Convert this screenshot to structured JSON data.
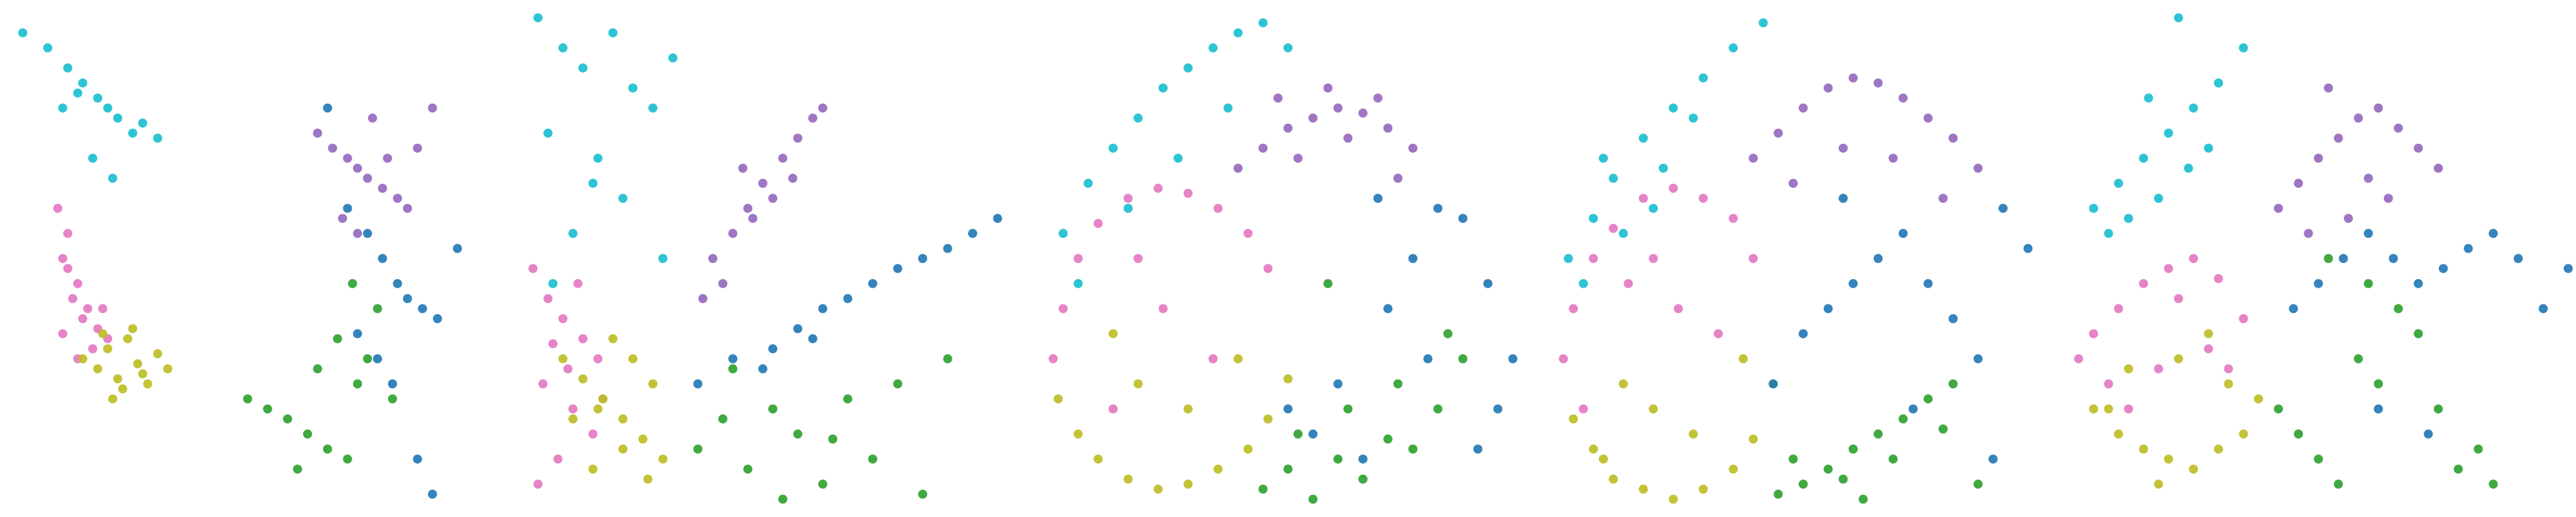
{
  "chart_data": [
    {
      "type": "scatter",
      "xlim": [
        0,
        100
      ],
      "ylim": [
        0,
        100
      ],
      "series": [
        {
          "color": "#17becf",
          "x": [
            3,
            8,
            12,
            15,
            18,
            20,
            22,
            25,
            14,
            17,
            27,
            30,
            21,
            11
          ],
          "y": [
            95,
            92,
            88,
            85,
            82,
            80,
            78,
            75,
            83,
            70,
            77,
            74,
            66,
            80
          ]
        },
        {
          "color": "#e377c2",
          "x": [
            10,
            12,
            11,
            14,
            13,
            16,
            15,
            18,
            12,
            20,
            17,
            11,
            14,
            19
          ],
          "y": [
            60,
            55,
            50,
            45,
            42,
            40,
            38,
            36,
            48,
            34,
            32,
            35,
            30,
            40
          ]
        },
        {
          "color": "#bcbd22",
          "x": [
            15,
            18,
            20,
            22,
            24,
            26,
            28,
            30,
            19,
            23,
            27,
            21,
            25,
            32
          ],
          "y": [
            30,
            28,
            32,
            26,
            34,
            29,
            25,
            31,
            35,
            24,
            27,
            22,
            36,
            28
          ]
        },
        {
          "color": "#9467bd",
          "x": [
            62,
            65,
            68,
            70,
            72,
            75,
            78,
            80,
            73,
            67,
            76,
            82,
            70,
            85
          ],
          "y": [
            75,
            72,
            70,
            68,
            66,
            64,
            62,
            60,
            78,
            58,
            70,
            72,
            55,
            80
          ]
        },
        {
          "color": "#1f77b4",
          "x": [
            64,
            68,
            72,
            75,
            78,
            80,
            83,
            86,
            90,
            74,
            70,
            77,
            82,
            85
          ],
          "y": [
            80,
            60,
            55,
            50,
            45,
            42,
            40,
            38,
            52,
            30,
            35,
            25,
            10,
            3
          ]
        },
        {
          "color": "#2ca02c",
          "x": [
            48,
            52,
            56,
            60,
            64,
            68,
            70,
            72,
            66,
            62,
            58,
            74,
            69,
            77
          ],
          "y": [
            22,
            20,
            18,
            15,
            12,
            10,
            25,
            30,
            34,
            28,
            8,
            40,
            45,
            22
          ]
        }
      ]
    },
    {
      "type": "scatter",
      "xlim": [
        0,
        100
      ],
      "ylim": [
        0,
        100
      ],
      "series": [
        {
          "color": "#17becf",
          "x": [
            3,
            8,
            12,
            18,
            22,
            26,
            30,
            5,
            15,
            20,
            10,
            28,
            6,
            14
          ],
          "y": [
            98,
            92,
            88,
            95,
            84,
            80,
            90,
            75,
            70,
            62,
            55,
            50,
            45,
            65
          ]
        },
        {
          "color": "#e377c2",
          "x": [
            2,
            5,
            8,
            12,
            15,
            4,
            10,
            14,
            7,
            3,
            16,
            9,
            11,
            6
          ],
          "y": [
            48,
            42,
            38,
            34,
            30,
            25,
            20,
            15,
            10,
            5,
            22,
            28,
            45,
            33
          ]
        },
        {
          "color": "#bcbd22",
          "x": [
            8,
            12,
            16,
            20,
            24,
            28,
            14,
            18,
            22,
            26,
            10,
            20,
            25,
            15
          ],
          "y": [
            30,
            26,
            22,
            18,
            14,
            10,
            8,
            34,
            30,
            25,
            18,
            12,
            6,
            20
          ]
        },
        {
          "color": "#9467bd",
          "x": [
            38,
            42,
            45,
            48,
            52,
            55,
            58,
            40,
            46,
            50,
            60,
            44,
            54,
            36
          ],
          "y": [
            50,
            55,
            60,
            65,
            70,
            74,
            78,
            45,
            58,
            62,
            80,
            68,
            66,
            42
          ]
        },
        {
          "color": "#1f77b4",
          "x": [
            35,
            42,
            50,
            55,
            60,
            65,
            70,
            75,
            80,
            85,
            90,
            95,
            48,
            58
          ],
          "y": [
            25,
            30,
            32,
            36,
            40,
            42,
            45,
            48,
            50,
            52,
            55,
            58,
            28,
            34
          ]
        },
        {
          "color": "#2ca02c",
          "x": [
            35,
            40,
            45,
            50,
            55,
            60,
            65,
            70,
            75,
            80,
            42,
            52,
            62,
            85
          ],
          "y": [
            12,
            18,
            8,
            20,
            15,
            5,
            22,
            10,
            25,
            3,
            28,
            2,
            14,
            30
          ]
        }
      ]
    },
    {
      "type": "scatter",
      "xlim": [
        0,
        100
      ],
      "ylim": [
        0,
        100
      ],
      "series": [
        {
          "color": "#17becf",
          "x": [
            5,
            10,
            15,
            20,
            25,
            30,
            35,
            40,
            45,
            50,
            8,
            18,
            28,
            38
          ],
          "y": [
            55,
            65,
            72,
            78,
            84,
            88,
            92,
            95,
            97,
            92,
            45,
            60,
            70,
            80
          ]
        },
        {
          "color": "#e377c2",
          "x": [
            3,
            5,
            8,
            12,
            18,
            24,
            30,
            36,
            42,
            46,
            15,
            25,
            35,
            20
          ],
          "y": [
            30,
            40,
            50,
            57,
            62,
            64,
            63,
            60,
            55,
            48,
            20,
            40,
            30,
            50
          ]
        },
        {
          "color": "#bcbd22",
          "x": [
            4,
            8,
            12,
            18,
            24,
            30,
            36,
            42,
            46,
            50,
            20,
            30,
            40,
            15
          ],
          "y": [
            22,
            15,
            10,
            6,
            4,
            5,
            8,
            12,
            18,
            26,
            25,
            20,
            30,
            35
          ]
        },
        {
          "color": "#9467bd",
          "x": [
            40,
            45,
            50,
            55,
            60,
            65,
            70,
            75,
            48,
            58,
            68,
            52,
            62,
            72
          ],
          "y": [
            68,
            72,
            76,
            78,
            80,
            79,
            76,
            72,
            82,
            84,
            82,
            70,
            74,
            66
          ]
        },
        {
          "color": "#1f77b4",
          "x": [
            50,
            55,
            60,
            65,
            70,
            75,
            80,
            85,
            90,
            95,
            92,
            88,
            78,
            68
          ],
          "y": [
            20,
            15,
            25,
            10,
            40,
            50,
            60,
            58,
            45,
            30,
            20,
            12,
            30,
            62
          ]
        },
        {
          "color": "#2ca02c",
          "x": [
            45,
            50,
            55,
            60,
            65,
            70,
            75,
            80,
            85,
            52,
            62,
            72,
            82,
            58
          ],
          "y": [
            4,
            8,
            2,
            10,
            6,
            14,
            12,
            20,
            30,
            15,
            20,
            25,
            35,
            45
          ]
        }
      ]
    },
    {
      "type": "scatter",
      "xlim": [
        0,
        100
      ],
      "ylim": [
        0,
        100
      ],
      "series": [
        {
          "color": "#17becf",
          "x": [
            3,
            8,
            12,
            18,
            24,
            30,
            36,
            42,
            6,
            14,
            22,
            28,
            20,
            10
          ],
          "y": [
            50,
            58,
            66,
            74,
            80,
            86,
            92,
            97,
            45,
            55,
            68,
            78,
            60,
            70
          ]
        },
        {
          "color": "#e377c2",
          "x": [
            2,
            4,
            8,
            12,
            18,
            24,
            30,
            36,
            40,
            15,
            25,
            6,
            33,
            20
          ],
          "y": [
            30,
            40,
            50,
            56,
            62,
            64,
            62,
            58,
            50,
            45,
            40,
            20,
            35,
            50
          ]
        },
        {
          "color": "#bcbd22",
          "x": [
            4,
            8,
            12,
            18,
            24,
            30,
            36,
            40,
            44,
            20,
            28,
            14,
            38,
            10
          ],
          "y": [
            18,
            12,
            6,
            4,
            2,
            4,
            8,
            14,
            25,
            20,
            15,
            25,
            30,
            10
          ]
        },
        {
          "color": "#9467bd",
          "x": [
            40,
            45,
            50,
            55,
            60,
            65,
            70,
            75,
            80,
            85,
            48,
            58,
            68,
            78
          ],
          "y": [
            70,
            75,
            80,
            84,
            86,
            85,
            82,
            78,
            74,
            68,
            65,
            72,
            70,
            62
          ]
        },
        {
          "color": "#1f77b4",
          "x": [
            44,
            50,
            55,
            60,
            65,
            70,
            75,
            80,
            85,
            90,
            95,
            58,
            72,
            88
          ],
          "y": [
            25,
            35,
            40,
            45,
            50,
            55,
            45,
            38,
            30,
            60,
            52,
            62,
            20,
            10
          ]
        },
        {
          "color": "#2ca02c",
          "x": [
            45,
            50,
            55,
            60,
            65,
            70,
            75,
            80,
            48,
            58,
            68,
            78,
            62,
            85
          ],
          "y": [
            3,
            5,
            8,
            12,
            15,
            18,
            22,
            25,
            10,
            6,
            10,
            16,
            2,
            5
          ]
        }
      ]
    },
    {
      "type": "scatter",
      "xlim": [
        0,
        100
      ],
      "ylim": [
        0,
        100
      ],
      "series": [
        {
          "color": "#17becf",
          "x": [
            5,
            10,
            15,
            20,
            25,
            30,
            35,
            12,
            18,
            24,
            8,
            28,
            22,
            16
          ],
          "y": [
            60,
            65,
            70,
            75,
            80,
            85,
            92,
            58,
            62,
            68,
            55,
            72,
            98,
            82
          ]
        },
        {
          "color": "#e377c2",
          "x": [
            2,
            5,
            10,
            15,
            20,
            25,
            30,
            35,
            8,
            18,
            28,
            12,
            22,
            32
          ],
          "y": [
            30,
            35,
            40,
            45,
            48,
            50,
            46,
            38,
            25,
            28,
            32,
            20,
            42,
            28
          ]
        },
        {
          "color": "#bcbd22",
          "x": [
            5,
            10,
            15,
            20,
            25,
            30,
            35,
            38,
            12,
            22,
            32,
            18,
            28,
            8
          ],
          "y": [
            20,
            15,
            12,
            10,
            8,
            12,
            15,
            22,
            28,
            30,
            25,
            5,
            35,
            20
          ]
        },
        {
          "color": "#9467bd",
          "x": [
            42,
            46,
            50,
            54,
            58,
            62,
            66,
            70,
            74,
            48,
            56,
            64,
            52,
            60
          ],
          "y": [
            60,
            65,
            70,
            74,
            78,
            80,
            76,
            72,
            68,
            55,
            58,
            62,
            84,
            66
          ]
        },
        {
          "color": "#1f77b4",
          "x": [
            45,
            50,
            55,
            60,
            65,
            70,
            75,
            80,
            85,
            90,
            95,
            100,
            62,
            72
          ],
          "y": [
            40,
            45,
            50,
            55,
            50,
            45,
            48,
            52,
            55,
            50,
            40,
            48,
            20,
            15
          ]
        },
        {
          "color": "#2ca02c",
          "x": [
            42,
            46,
            50,
            54,
            58,
            62,
            66,
            70,
            74,
            78,
            82,
            85,
            60,
            52
          ],
          "y": [
            20,
            15,
            10,
            5,
            30,
            25,
            40,
            35,
            20,
            8,
            12,
            5,
            45,
            50
          ]
        }
      ]
    }
  ]
}
